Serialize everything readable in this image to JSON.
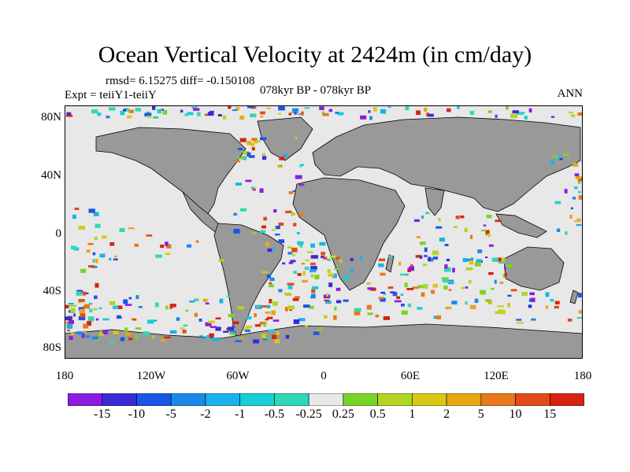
{
  "title": "Ocean Vertical Velocity at 2424m (in cm/day)",
  "stats": "rmsd= 6.15275 diff= -0.150108",
  "experiment": "Expt = teiiY1-teiiY",
  "period": "078kyr BP - 078kyr BP",
  "season": "ANN",
  "lat_labels": [
    "80N",
    "40N",
    "0",
    "40S",
    "80S"
  ],
  "lon_labels": [
    "180",
    "120W",
    "60W",
    "0",
    "60E",
    "120E",
    "180"
  ],
  "colorbar": {
    "labels": [
      "-15",
      "-10",
      "-5",
      "-2",
      "-1",
      "-0.5",
      "-0.25",
      "0.25",
      "0.5",
      "1",
      "2",
      "5",
      "10",
      "15"
    ],
    "colors": [
      "#8a1ce0",
      "#3a2ad6",
      "#1a56e6",
      "#1c88e8",
      "#1ab2ea",
      "#18cfd6",
      "#2ed8b6",
      "#e8e8e8",
      "#7ad428",
      "#b2d424",
      "#d8c816",
      "#e8a814",
      "#e8781a",
      "#e24a18",
      "#d42410"
    ]
  },
  "map": {
    "land_color": "#999999",
    "ocean_color": "#e8e8e8"
  }
}
